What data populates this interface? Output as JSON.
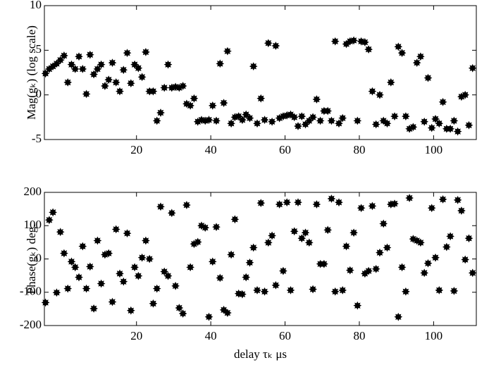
{
  "chart_data": [
    {
      "type": "scatter",
      "ylabel": "Mag(gₖ) (log scale)",
      "color": "#000000",
      "xlim": [
        -4.8,
        111.5
      ],
      "ylim": [
        -5,
        10
      ],
      "xticks": [
        20,
        40,
        60,
        80,
        100
      ],
      "yticks": [
        -5,
        0,
        5,
        10
      ],
      "x": [
        -4.5,
        -3.5,
        -2.5,
        -1.5,
        -0.5,
        0.5,
        1.5,
        2.5,
        3.5,
        4.5,
        5.5,
        6.5,
        7.5,
        8.5,
        9.5,
        10.5,
        11.5,
        12.5,
        13.5,
        14.5,
        15.5,
        16.5,
        17.5,
        18.5,
        19.5,
        20.5,
        21.5,
        22.5,
        23.5,
        24.5,
        25.5,
        26.5,
        27.5,
        28.5,
        29.5,
        30.5,
        31.5,
        32.5,
        33.5,
        34.5,
        35.5,
        36.5,
        37.5,
        38.5,
        39.5,
        40.5,
        41.5,
        42.5,
        43.5,
        44.5,
        45.5,
        46.5,
        47.5,
        48.5,
        49.5,
        50.5,
        51.5,
        52.5,
        53.5,
        54.5,
        55.5,
        56.5,
        57.5,
        58.5,
        59.5,
        60.5,
        61.5,
        62.5,
        63.5,
        64.5,
        65.5,
        66.5,
        67.5,
        68.5,
        69.5,
        70.5,
        71.5,
        72.5,
        73.5,
        74.5,
        75.5,
        76.5,
        77.5,
        78.5,
        79.5,
        80.5,
        81.5,
        82.5,
        83.5,
        84.5,
        85.5,
        86.5,
        87.5,
        88.5,
        89.5,
        90.5,
        91.5,
        92.5,
        93.5,
        94.5,
        95.5,
        96.5,
        97.5,
        98.5,
        99.5,
        100.5,
        101.5,
        102.5,
        103.5,
        104.5,
        105.5,
        106.5,
        107.5,
        108.5,
        109.5,
        110.5
      ],
      "values": [
        2.4,
        2.9,
        3.2,
        3.5,
        3.9,
        4.4,
        1.4,
        3.4,
        2.9,
        4.3,
        2.9,
        0.1,
        4.5,
        2.3,
        2.9,
        3.4,
        1.0,
        1.7,
        3.6,
        1.4,
        0.4,
        2.8,
        4.7,
        1.3,
        3.4,
        3.0,
        2.0,
        4.8,
        0.4,
        0.4,
        -2.9,
        -2.0,
        0.8,
        3.4,
        0.8,
        0.9,
        0.8,
        1.0,
        -1.0,
        -1.2,
        -0.4,
        -3.0,
        -2.8,
        -2.9,
        -2.8,
        -1.2,
        -2.9,
        3.5,
        -0.9,
        4.9,
        -3.2,
        -2.5,
        -2.4,
        -2.8,
        -2.2,
        -2.6,
        3.2,
        -3.2,
        -0.4,
        -2.8,
        5.8,
        -3.0,
        5.5,
        -2.6,
        -2.4,
        -2.3,
        -2.2,
        -2.5,
        -3.5,
        -2.4,
        -3.3,
        -2.9,
        -2.5,
        -0.5,
        -2.9,
        -1.8,
        -1.8,
        -2.9,
        6.0,
        -3.2,
        -2.6,
        5.7,
        6.0,
        6.1,
        -2.9,
        6.0,
        5.9,
        5.1,
        0.4,
        -3.3,
        0.0,
        -2.9,
        -3.2,
        1.4,
        -2.4,
        5.4,
        4.7,
        -2.4,
        -3.8,
        -3.6,
        3.6,
        4.3,
        -3.0,
        1.9,
        -3.7,
        -2.7,
        -3.2,
        -0.8,
        -3.8,
        -3.8,
        -2.9,
        -4.1,
        -0.2,
        0.0,
        -3.4,
        3.0
      ]
    },
    {
      "type": "scatter",
      "ylabel": "Phase(gₖ) deg.",
      "xlabel": "delay τₖ μs",
      "color": "#000000",
      "xlim": [
        -4.8,
        111.5
      ],
      "ylim": [
        -200,
        200
      ],
      "xticks": [
        20,
        40,
        60,
        80,
        100
      ],
      "yticks": [
        -200,
        -100,
        0,
        100,
        200
      ],
      "x": [
        -4.5,
        -3.5,
        -2.5,
        -1.5,
        -0.5,
        0.5,
        1.5,
        2.5,
        3.5,
        4.5,
        5.5,
        6.5,
        7.5,
        8.5,
        9.5,
        10.5,
        11.5,
        12.5,
        13.5,
        14.5,
        15.5,
        16.5,
        17.5,
        18.5,
        19.5,
        20.5,
        21.5,
        22.5,
        23.5,
        24.5,
        25.5,
        26.5,
        27.5,
        28.5,
        29.5,
        30.5,
        31.5,
        32.5,
        33.5,
        34.5,
        35.5,
        36.5,
        37.5,
        38.5,
        39.5,
        40.5,
        41.5,
        42.5,
        43.5,
        44.5,
        45.5,
        46.5,
        47.5,
        48.5,
        49.5,
        50.5,
        51.5,
        52.5,
        53.5,
        54.5,
        55.5,
        56.5,
        57.5,
        58.5,
        59.5,
        60.5,
        61.5,
        62.5,
        63.5,
        64.5,
        65.5,
        66.5,
        67.5,
        68.5,
        69.5,
        70.5,
        71.5,
        72.5,
        73.5,
        74.5,
        75.5,
        76.5,
        77.5,
        78.5,
        79.5,
        80.5,
        81.5,
        82.5,
        83.5,
        84.5,
        85.5,
        86.5,
        87.5,
        88.5,
        89.5,
        90.5,
        91.5,
        92.5,
        93.5,
        94.5,
        95.5,
        96.5,
        97.5,
        98.5,
        99.5,
        100.5,
        101.5,
        102.5,
        103.5,
        104.5,
        105.5,
        106.5,
        107.5,
        108.5,
        109.5,
        110.5
      ],
      "values": [
        -131,
        117,
        140,
        -101,
        81,
        17,
        -89,
        -8,
        -25,
        -55,
        38,
        -89,
        -23,
        -149,
        55,
        -74,
        13,
        17,
        -129,
        89,
        -44,
        -68,
        77,
        -155,
        -25,
        -51,
        4,
        55,
        0,
        -134,
        -89,
        157,
        -38,
        -51,
        138,
        -81,
        -147,
        -164,
        162,
        -25,
        45,
        51,
        100,
        94,
        -174,
        -8,
        96,
        -57,
        -153,
        -162,
        13,
        119,
        -104,
        -106,
        -55,
        -11,
        34,
        -94,
        168,
        -98,
        49,
        70,
        -79,
        164,
        -36,
        170,
        -94,
        83,
        170,
        62,
        79,
        49,
        -91,
        164,
        -15,
        -15,
        87,
        181,
        -98,
        170,
        -94,
        38,
        -34,
        79,
        -140,
        153,
        -44,
        -36,
        159,
        -30,
        19,
        106,
        34,
        164,
        166,
        -174,
        -25,
        -98,
        183,
        60,
        55,
        49,
        -42,
        -13,
        153,
        4,
        -94,
        179,
        36,
        68,
        -96,
        177,
        145,
        -2,
        62,
        -42
      ]
    }
  ]
}
